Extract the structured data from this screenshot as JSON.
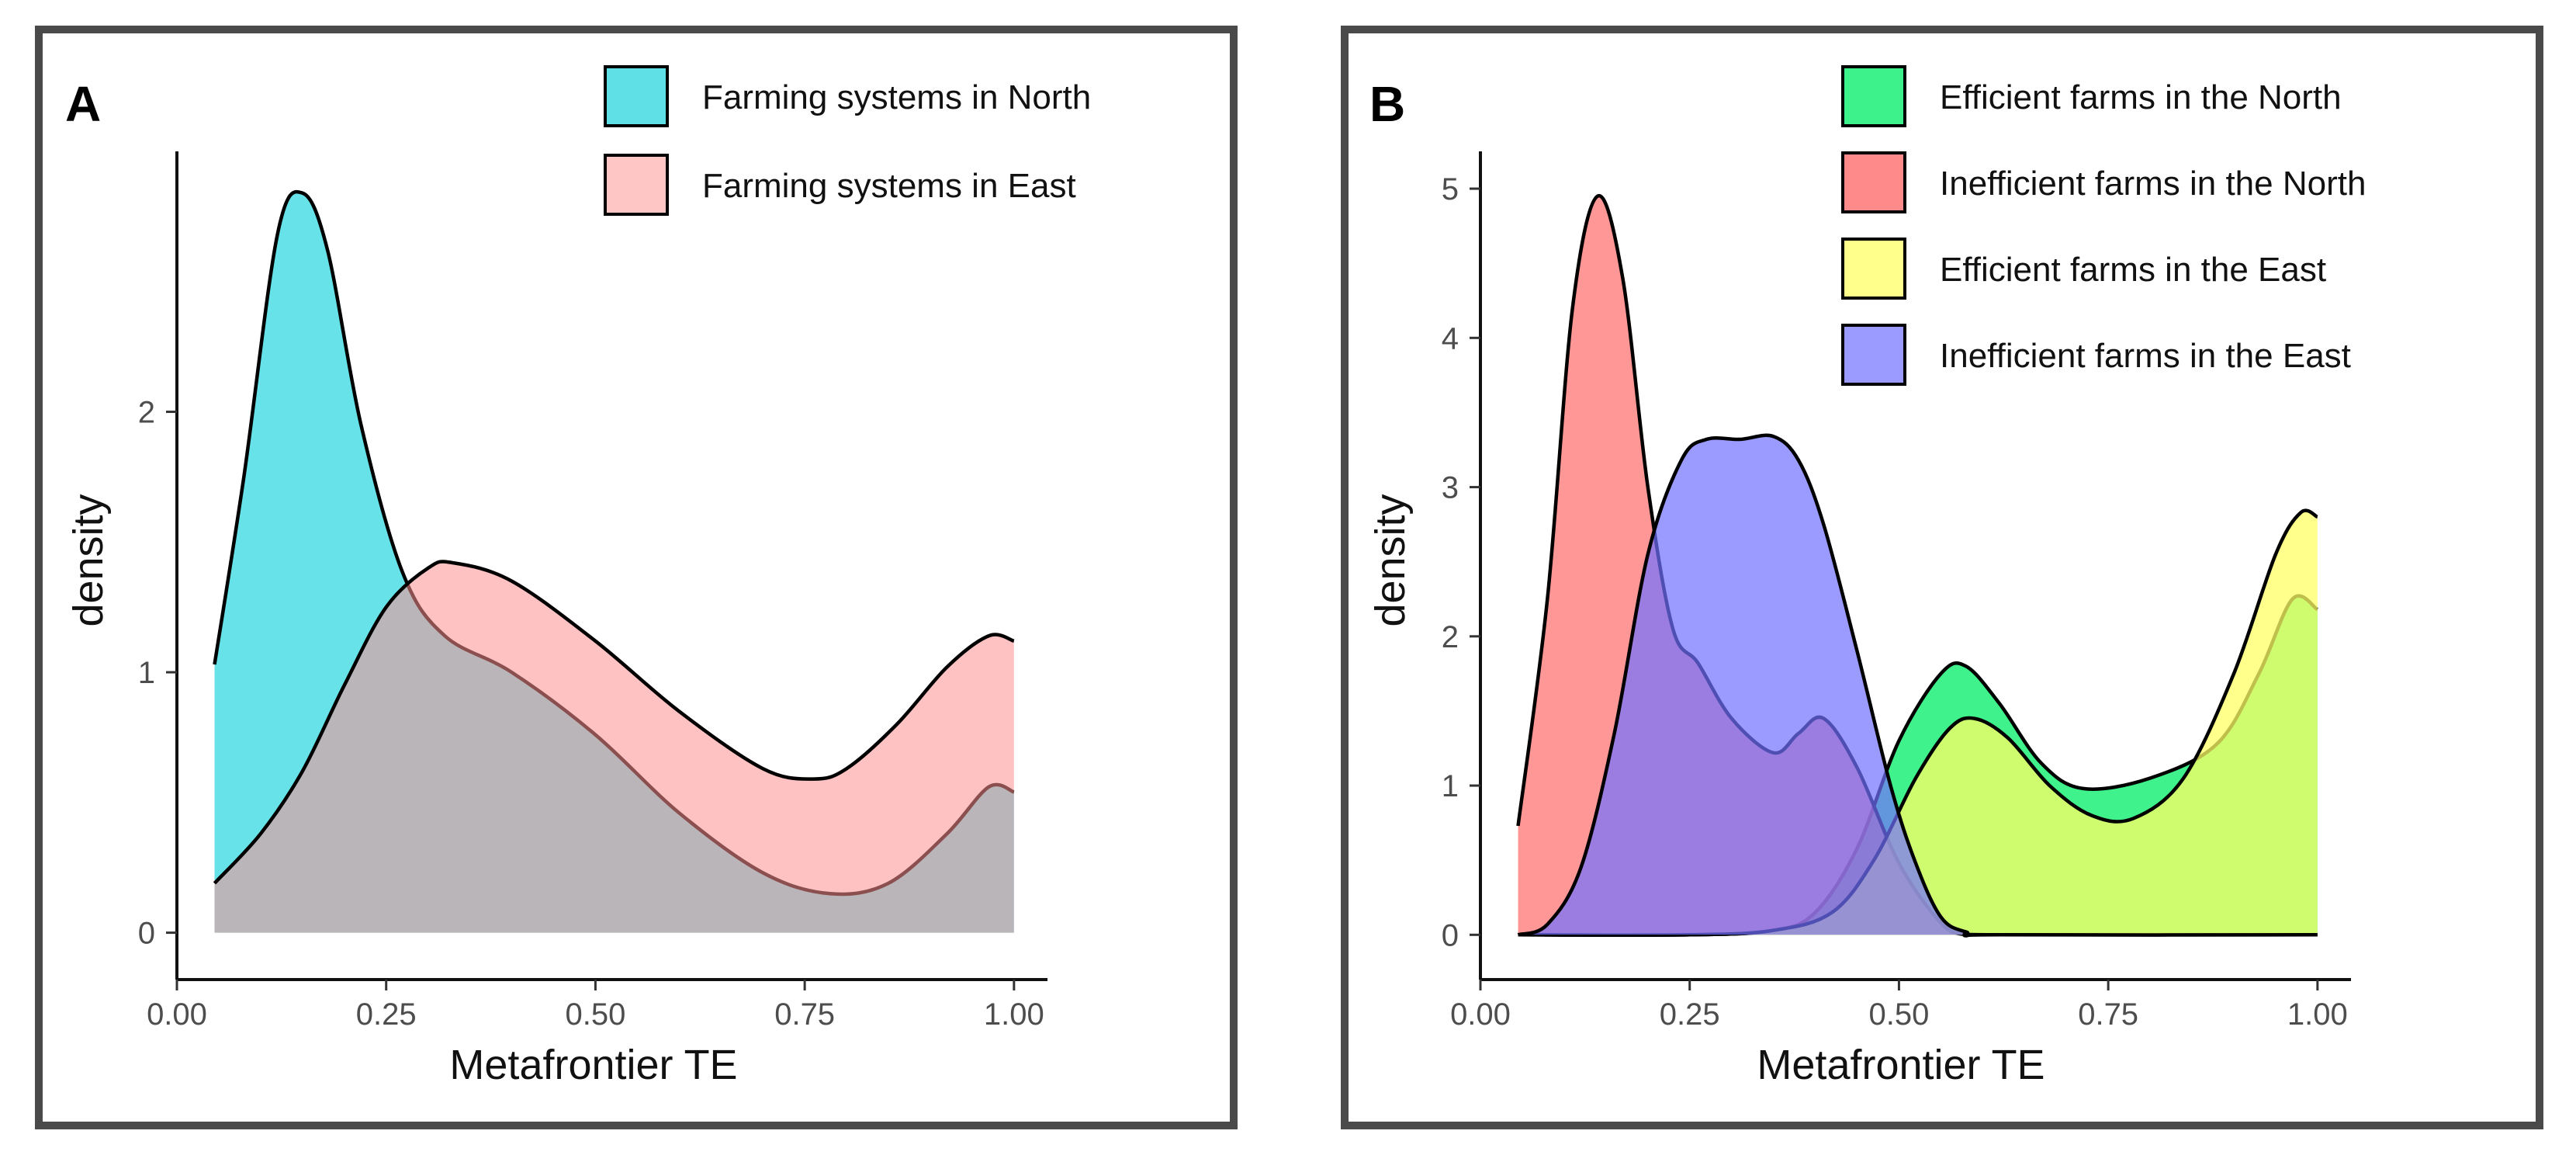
{
  "chart_data": [
    {
      "type": "area",
      "panel_label": "A",
      "xlabel": "Metafrontier TE",
      "ylabel": "density",
      "xlim": [
        0,
        1.04
      ],
      "ylim": [
        -0.18,
        3.0
      ],
      "x_ticks": [
        0,
        0.25,
        0.5,
        0.75,
        1.0
      ],
      "x_tick_labels": [
        "0.00",
        "0.25",
        "0.50",
        "0.75",
        "1.00"
      ],
      "y_ticks": [
        0,
        1,
        2
      ],
      "y_tick_labels": [
        "0",
        "1",
        "2"
      ],
      "legend_position": "top-right",
      "series": [
        {
          "name": "Farming systems in North",
          "color": "#00CED9",
          "opacity": 0.6,
          "x": [
            0.045,
            0.08,
            0.12,
            0.15,
            0.18,
            0.22,
            0.27,
            0.32,
            0.4,
            0.5,
            0.6,
            0.7,
            0.78,
            0.85,
            0.92,
            0.97,
            1.0
          ],
          "y": [
            1.03,
            1.75,
            2.68,
            2.84,
            2.62,
            1.95,
            1.38,
            1.14,
            1.0,
            0.76,
            0.46,
            0.23,
            0.15,
            0.19,
            0.38,
            0.56,
            0.54
          ]
        },
        {
          "name": "Farming systems in East",
          "color": "#FF9090",
          "opacity": 0.55,
          "x": [
            0.045,
            0.1,
            0.15,
            0.2,
            0.25,
            0.3,
            0.33,
            0.4,
            0.5,
            0.6,
            0.7,
            0.76,
            0.8,
            0.86,
            0.92,
            0.97,
            1.0
          ],
          "y": [
            0.19,
            0.38,
            0.62,
            0.95,
            1.25,
            1.4,
            1.42,
            1.35,
            1.12,
            0.85,
            0.63,
            0.59,
            0.63,
            0.8,
            1.02,
            1.14,
            1.12
          ]
        }
      ]
    },
    {
      "type": "area",
      "panel_label": "B",
      "xlabel": "Metafrontier TE",
      "ylabel": "density",
      "xlim": [
        0,
        1.04
      ],
      "ylim": [
        -0.3,
        5.25
      ],
      "x_ticks": [
        0,
        0.25,
        0.5,
        0.75,
        1.0
      ],
      "x_tick_labels": [
        "0.00",
        "0.25",
        "0.50",
        "0.75",
        "1.00"
      ],
      "y_ticks": [
        0,
        1,
        2,
        3,
        4,
        5
      ],
      "y_tick_labels": [
        "0",
        "1",
        "2",
        "3",
        "4",
        "5"
      ],
      "legend_position": "top-right",
      "series": [
        {
          "name": "Efficient farms in the North",
          "color": "#00EE66",
          "opacity": 0.75,
          "x": [
            0.045,
            0.25,
            0.35,
            0.4,
            0.45,
            0.5,
            0.55,
            0.58,
            0.62,
            0.67,
            0.72,
            0.8,
            0.88,
            0.93,
            0.97,
            1.0
          ],
          "y": [
            0,
            0,
            0.03,
            0.15,
            0.58,
            1.3,
            1.75,
            1.8,
            1.55,
            1.15,
            0.98,
            1.05,
            1.28,
            1.75,
            2.25,
            2.18
          ]
        },
        {
          "name": "Inefficient farms in the North",
          "color": "#FF6B6B",
          "opacity": 0.7,
          "x": [
            0.045,
            0.08,
            0.11,
            0.14,
            0.17,
            0.2,
            0.23,
            0.26,
            0.3,
            0.35,
            0.38,
            0.41,
            0.45,
            0.5,
            0.55,
            0.58,
            0.62,
            1.0
          ],
          "y": [
            0.73,
            2.25,
            4.2,
            4.95,
            4.4,
            3.0,
            2.05,
            1.82,
            1.45,
            1.22,
            1.35,
            1.45,
            1.12,
            0.48,
            0.08,
            0,
            0,
            0
          ]
        },
        {
          "name": "Efficient farms in the East",
          "color": "#FFFF66",
          "opacity": 0.75,
          "x": [
            0.045,
            0.25,
            0.35,
            0.42,
            0.47,
            0.52,
            0.56,
            0.59,
            0.63,
            0.68,
            0.73,
            0.78,
            0.84,
            0.9,
            0.95,
            0.98,
            1.0
          ],
          "y": [
            0,
            0,
            0.03,
            0.15,
            0.5,
            1.05,
            1.38,
            1.45,
            1.32,
            1.0,
            0.8,
            0.78,
            1.05,
            1.75,
            2.55,
            2.83,
            2.8
          ]
        },
        {
          "name": "Inefficient farms in the East",
          "color": "#7070FF",
          "opacity": 0.7,
          "x": [
            0.045,
            0.08,
            0.12,
            0.16,
            0.2,
            0.24,
            0.27,
            0.31,
            0.35,
            0.38,
            0.41,
            0.45,
            0.49,
            0.52,
            0.55,
            0.58,
            0.62,
            1.0
          ],
          "y": [
            0,
            0.07,
            0.45,
            1.35,
            2.55,
            3.18,
            3.32,
            3.32,
            3.34,
            3.18,
            2.75,
            1.9,
            1.0,
            0.48,
            0.12,
            0.02,
            0,
            0
          ]
        }
      ]
    }
  ]
}
